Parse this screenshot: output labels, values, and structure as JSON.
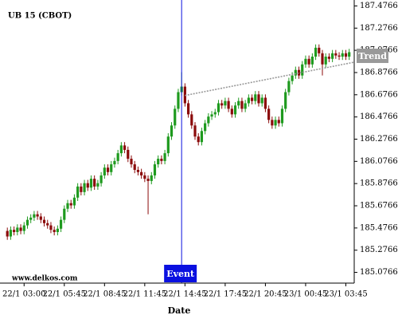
{
  "chart_data": {
    "type": "candlestick",
    "title": "UB 15 (CBOT)",
    "watermark": "www.delkos.com",
    "x_label": "Date",
    "colors": {
      "up": "#1e9a1e",
      "down": "#8b0a0a"
    },
    "xlim": [
      -1,
      103.5
    ],
    "ylim": [
      184.98,
      187.53
    ],
    "yticks": [
      185.0766,
      185.2766,
      185.4766,
      185.6766,
      185.8766,
      186.0766,
      186.2766,
      186.4766,
      186.6766,
      186.8766,
      187.0766,
      187.2766,
      187.4766
    ],
    "xticks": [
      {
        "value": 5,
        "label": "22/1 03:00"
      },
      {
        "value": 17,
        "label": "22/1 05:45"
      },
      {
        "value": 29,
        "label": "22/1 08:45"
      },
      {
        "value": 41,
        "label": "22/1 11:45"
      },
      {
        "value": 53,
        "label": "22/1 14:45"
      },
      {
        "value": 65,
        "label": "22/1 17:45"
      },
      {
        "value": 77,
        "label": "22/1 20:45"
      },
      {
        "value": 89,
        "label": "23/1 00:45"
      },
      {
        "value": 101,
        "label": "23/1 03:45"
      }
    ],
    "x": [
      0,
      1,
      2,
      3,
      4,
      5,
      6,
      7,
      8,
      9,
      10,
      11,
      12,
      13,
      14,
      15,
      16,
      17,
      18,
      19,
      20,
      21,
      22,
      23,
      24,
      25,
      26,
      27,
      28,
      29,
      30,
      31,
      32,
      33,
      34,
      35,
      36,
      37,
      38,
      39,
      40,
      41,
      42,
      43,
      44,
      45,
      46,
      47,
      48,
      49,
      50,
      51,
      52,
      53,
      54,
      55,
      56,
      57,
      58,
      59,
      60,
      61,
      62,
      63,
      64,
      65,
      66,
      67,
      68,
      69,
      70,
      71,
      72,
      73,
      74,
      75,
      76,
      77,
      78,
      79,
      80,
      81,
      82,
      83,
      84,
      85,
      86,
      87,
      88,
      89,
      90,
      91,
      92,
      93,
      94,
      95,
      96,
      97,
      98,
      99,
      100,
      101,
      102
    ],
    "open": [
      185.45,
      185.4,
      185.46,
      185.44,
      185.48,
      185.45,
      185.5,
      185.55,
      185.57,
      185.6,
      185.58,
      185.55,
      185.52,
      185.5,
      185.46,
      185.44,
      185.47,
      185.55,
      185.65,
      185.7,
      185.68,
      185.75,
      185.85,
      185.8,
      185.88,
      185.84,
      185.92,
      185.85,
      185.88,
      185.95,
      186.02,
      185.98,
      186.05,
      186.08,
      186.15,
      186.22,
      186.18,
      186.1,
      186.05,
      186.0,
      185.98,
      185.95,
      185.92,
      185.9,
      185.95,
      186.05,
      186.1,
      186.08,
      186.15,
      186.3,
      186.4,
      186.55,
      186.7,
      186.75,
      186.6,
      186.5,
      186.4,
      186.3,
      186.25,
      186.35,
      186.42,
      186.48,
      186.5,
      186.52,
      186.6,
      186.58,
      186.62,
      186.55,
      186.5,
      186.58,
      186.62,
      186.55,
      186.6,
      186.65,
      186.62,
      186.68,
      186.6,
      186.65,
      186.55,
      186.45,
      186.4,
      186.45,
      186.42,
      186.55,
      186.7,
      186.8,
      186.85,
      186.9,
      186.85,
      186.95,
      187.0,
      186.95,
      187.02,
      187.1,
      187.05,
      186.95,
      187.02,
      187.0,
      187.05,
      187.03,
      187.02,
      187.05,
      187.02
    ],
    "high": [
      185.48,
      185.49,
      185.49,
      185.51,
      185.51,
      185.53,
      185.58,
      185.6,
      185.63,
      185.63,
      185.61,
      185.58,
      185.55,
      185.53,
      185.49,
      185.5,
      185.58,
      185.68,
      185.73,
      185.73,
      185.78,
      185.88,
      185.88,
      185.91,
      185.91,
      185.95,
      185.95,
      185.91,
      185.98,
      186.05,
      186.05,
      186.08,
      186.11,
      186.18,
      186.25,
      186.25,
      186.21,
      186.13,
      186.08,
      186.03,
      186.01,
      185.98,
      185.95,
      185.98,
      186.08,
      186.13,
      186.13,
      186.18,
      186.33,
      186.43,
      186.58,
      186.73,
      186.88,
      186.78,
      186.63,
      186.53,
      186.43,
      186.33,
      186.38,
      186.45,
      186.51,
      186.53,
      186.55,
      186.63,
      186.63,
      186.65,
      186.65,
      186.58,
      186.61,
      186.65,
      186.65,
      186.63,
      186.68,
      186.68,
      186.71,
      186.71,
      186.68,
      186.68,
      186.58,
      186.48,
      186.48,
      186.48,
      186.58,
      186.73,
      186.83,
      186.88,
      186.93,
      186.93,
      186.98,
      187.03,
      187.03,
      187.05,
      187.13,
      187.13,
      187.08,
      187.05,
      187.05,
      187.08,
      187.08,
      187.06,
      187.08,
      187.08,
      187.09
    ],
    "low": [
      185.37,
      185.37,
      185.41,
      185.41,
      185.42,
      185.42,
      185.47,
      185.52,
      185.54,
      185.55,
      185.52,
      185.49,
      185.47,
      185.43,
      185.41,
      185.41,
      185.44,
      185.52,
      185.62,
      185.65,
      185.65,
      185.72,
      185.77,
      185.77,
      185.81,
      185.81,
      185.82,
      185.82,
      185.85,
      185.92,
      185.95,
      185.95,
      186.02,
      186.05,
      186.12,
      186.15,
      186.07,
      186.02,
      185.97,
      185.95,
      185.92,
      185.89,
      185.6,
      185.87,
      185.92,
      186.02,
      186.05,
      186.05,
      186.12,
      186.27,
      186.37,
      186.52,
      186.67,
      186.57,
      186.47,
      186.37,
      186.27,
      186.22,
      186.22,
      186.32,
      186.39,
      186.45,
      186.47,
      186.49,
      186.55,
      186.55,
      186.52,
      186.47,
      186.47,
      186.55,
      186.52,
      186.52,
      186.57,
      186.59,
      186.59,
      186.57,
      186.57,
      186.52,
      186.42,
      186.37,
      186.37,
      186.39,
      186.39,
      186.52,
      186.67,
      186.77,
      186.82,
      186.82,
      186.82,
      186.92,
      186.92,
      186.92,
      186.99,
      187.02,
      186.85,
      186.92,
      186.97,
      186.97,
      187.0,
      186.99,
      186.99,
      186.99,
      186.99
    ],
    "close": [
      185.4,
      185.46,
      185.44,
      185.48,
      185.45,
      185.5,
      185.55,
      185.57,
      185.6,
      185.58,
      185.55,
      185.52,
      185.5,
      185.46,
      185.44,
      185.47,
      185.55,
      185.65,
      185.7,
      185.68,
      185.75,
      185.85,
      185.8,
      185.88,
      185.84,
      185.92,
      185.85,
      185.88,
      185.95,
      186.02,
      185.98,
      186.05,
      186.08,
      186.15,
      186.22,
      186.18,
      186.1,
      186.05,
      186.0,
      185.98,
      185.95,
      185.92,
      185.9,
      185.95,
      186.05,
      186.1,
      186.08,
      186.15,
      186.3,
      186.4,
      186.55,
      186.7,
      186.75,
      186.6,
      186.5,
      186.4,
      186.3,
      186.25,
      186.35,
      186.42,
      186.48,
      186.5,
      186.52,
      186.6,
      186.58,
      186.62,
      186.55,
      186.5,
      186.58,
      186.62,
      186.55,
      186.6,
      186.65,
      186.62,
      186.68,
      186.6,
      186.65,
      186.55,
      186.45,
      186.4,
      186.45,
      186.42,
      186.55,
      186.7,
      186.8,
      186.85,
      186.9,
      186.85,
      186.95,
      187.0,
      186.95,
      187.02,
      187.1,
      187.05,
      186.95,
      187.02,
      187.0,
      187.05,
      187.03,
      187.02,
      187.05,
      187.02,
      187.06
    ],
    "trend": {
      "label": "Trend",
      "color": "#999999",
      "x": [
        53,
        103.5
      ],
      "y": [
        186.67,
        186.97
      ]
    },
    "event": {
      "label": "Event",
      "color": "#0a10e0",
      "x": 52
    }
  }
}
